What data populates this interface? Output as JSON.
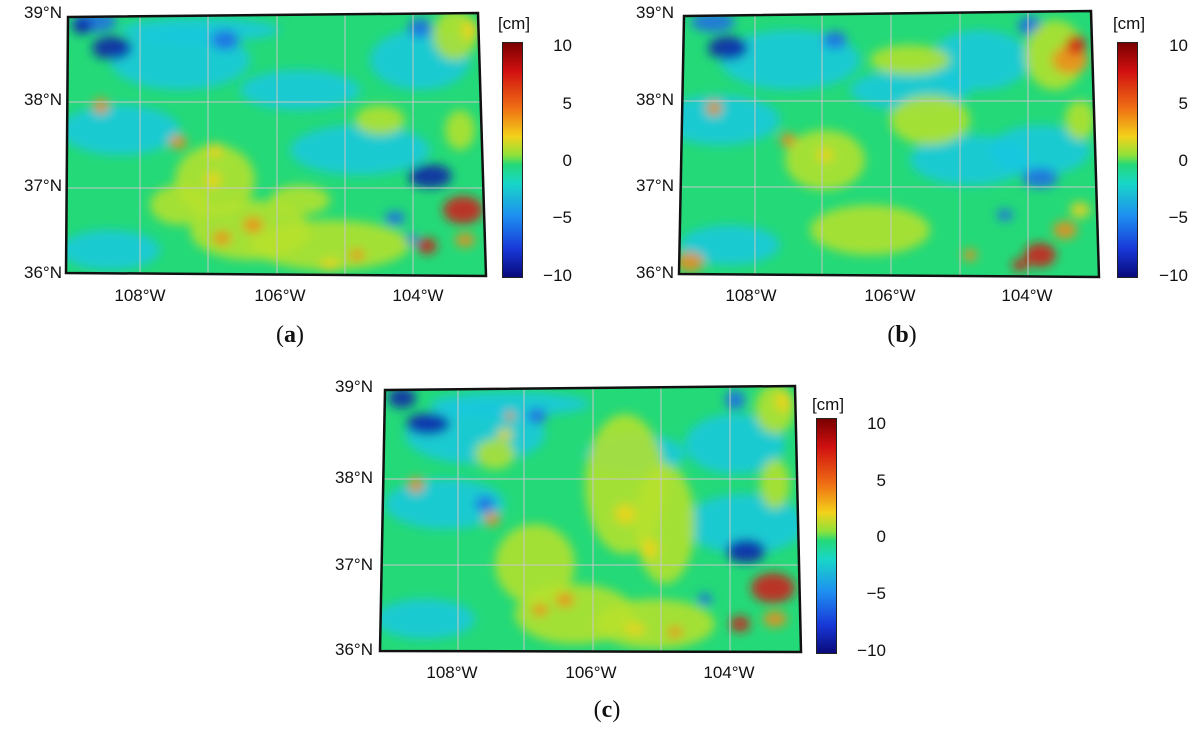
{
  "figure": {
    "panels": [
      {
        "id": "a",
        "caption": "a",
        "lat_labels": [
          "39°N",
          "38°N",
          "37°N",
          "36°N"
        ],
        "lon_labels": [
          "108°W",
          "106°W",
          "104°W"
        ],
        "colorbar": {
          "unit": "[cm]",
          "ticks": [
            "10",
            "5",
            "0",
            "−5",
            "−10"
          ]
        }
      },
      {
        "id": "b",
        "caption": "b",
        "lat_labels": [
          "39°N",
          "38°N",
          "37°N",
          "36°N"
        ],
        "lon_labels": [
          "108°W",
          "106°W",
          "104°W"
        ],
        "colorbar": {
          "unit": "[cm]",
          "ticks": [
            "10",
            "5",
            "0",
            "−5",
            "−10"
          ]
        }
      },
      {
        "id": "c",
        "caption": "c",
        "lat_labels": [
          "39°N",
          "38°N",
          "37°N",
          "36°N"
        ],
        "lon_labels": [
          "108°W",
          "106°W",
          "104°W"
        ],
        "colorbar": {
          "unit": "[cm]",
          "ticks": [
            "10",
            "5",
            "0",
            "−5",
            "−10"
          ]
        }
      }
    ],
    "colorbar_range_cm": [
      -10,
      10
    ],
    "map_extent": {
      "lat_range": [
        36,
        39
      ],
      "lon_range": [
        -109.05,
        -102.05
      ]
    },
    "colors": {
      "background": "#24d978",
      "dark_blue": "#0a1ea8",
      "blue": "#1e6ae6",
      "cyan": "#16c8e0",
      "yellow_green": "#b8e22a",
      "yellow": "#f2d21a",
      "orange": "#f28a1a",
      "red": "#d41a16",
      "grid": "#c8c8c8",
      "frame": "#111111"
    }
  }
}
